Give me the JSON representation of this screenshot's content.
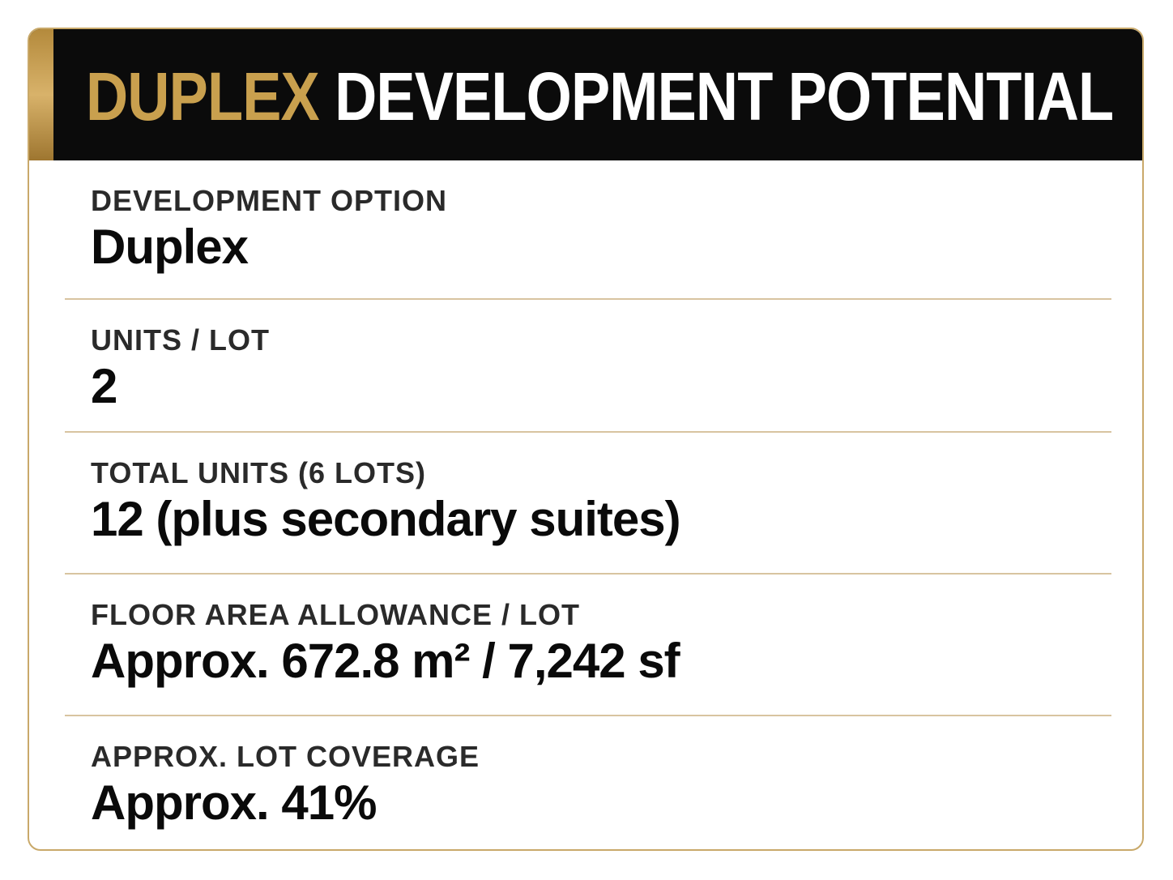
{
  "header": {
    "title_accent": "DUPLEX",
    "title_rest": "DEVELOPMENT POTENTIAL"
  },
  "rows": [
    {
      "label": "DEVELOPMENT OPTION",
      "value": "Duplex"
    },
    {
      "label": "UNITS / LOT",
      "value": "2"
    },
    {
      "label": "TOTAL UNITS (6 LOTS)",
      "value": "12 (plus secondary suites)"
    },
    {
      "label": "FLOOR AREA ALLOWANCE / LOT",
      "value": "Approx. 672.8 m² / 7,242 sf"
    },
    {
      "label": "APPROX. LOT COVERAGE",
      "value": "Approx. 41%"
    }
  ]
}
